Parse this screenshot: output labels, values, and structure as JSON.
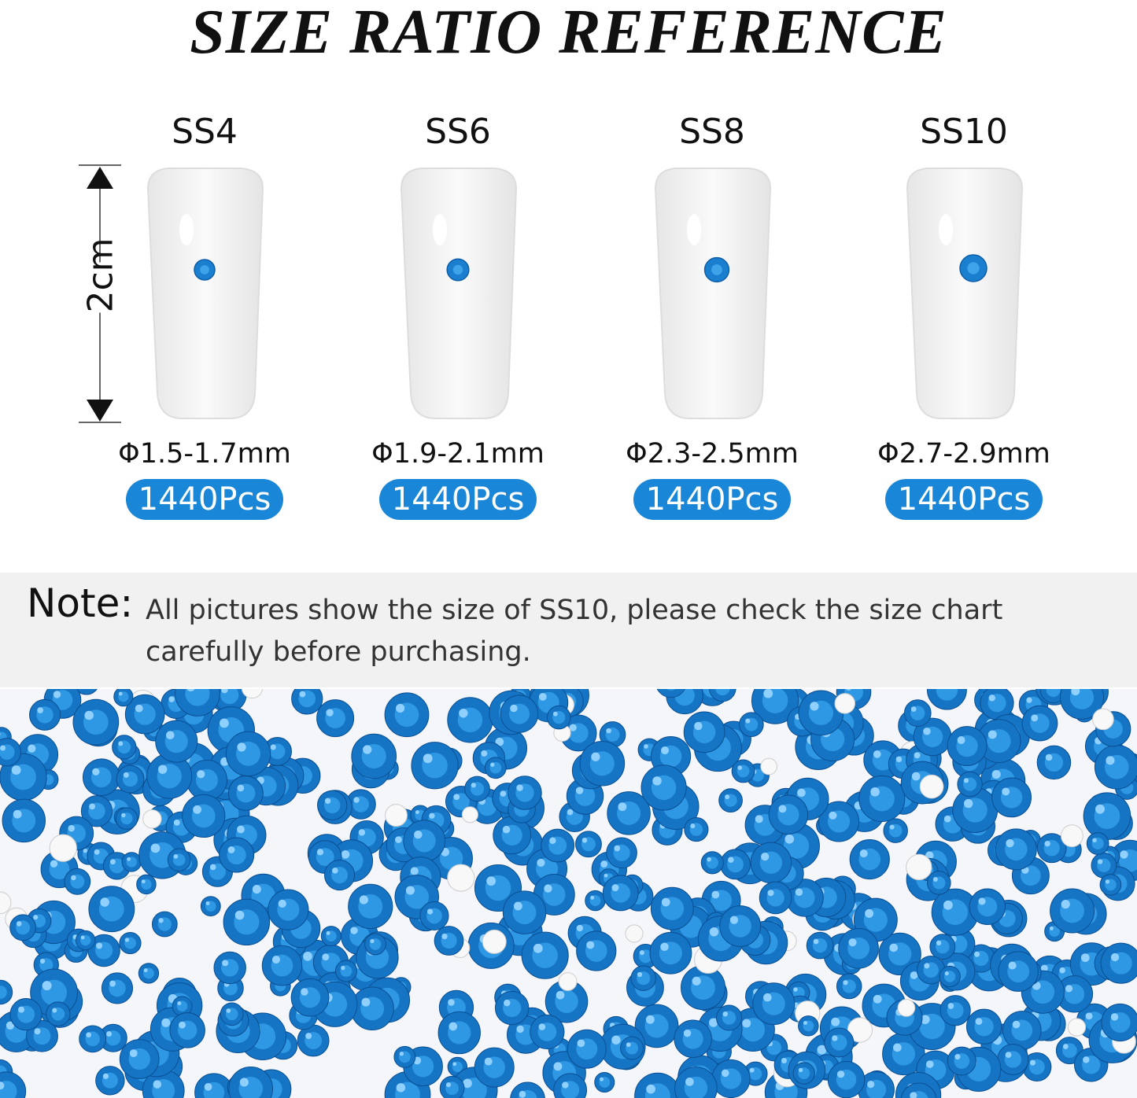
{
  "title": "SIZE RATIO REFERENCE",
  "height_label": "2cm",
  "sizes": [
    {
      "name": "SS4",
      "diameter": "Φ1.5-1.7mm",
      "count": "1440Pcs",
      "stone_scale": 0.5
    },
    {
      "name": "SS6",
      "diameter": "Φ1.9-2.1mm",
      "count": "1440Pcs",
      "stone_scale": 0.6
    },
    {
      "name": "SS8",
      "diameter": "Φ2.3-2.5mm",
      "count": "1440Pcs",
      "stone_scale": 0.8
    },
    {
      "name": "SS10",
      "diameter": "Φ2.7-2.9mm",
      "count": "1440Pcs",
      "stone_scale": 1.0
    }
  ],
  "note": {
    "label": "Note:",
    "text": "All pictures show the size of SS10, please check the size chart carefully before purchasing."
  },
  "colors": {
    "badge": "#1a86d8",
    "stone": "#1b7fcf",
    "note_band": "#f1f1f1"
  }
}
